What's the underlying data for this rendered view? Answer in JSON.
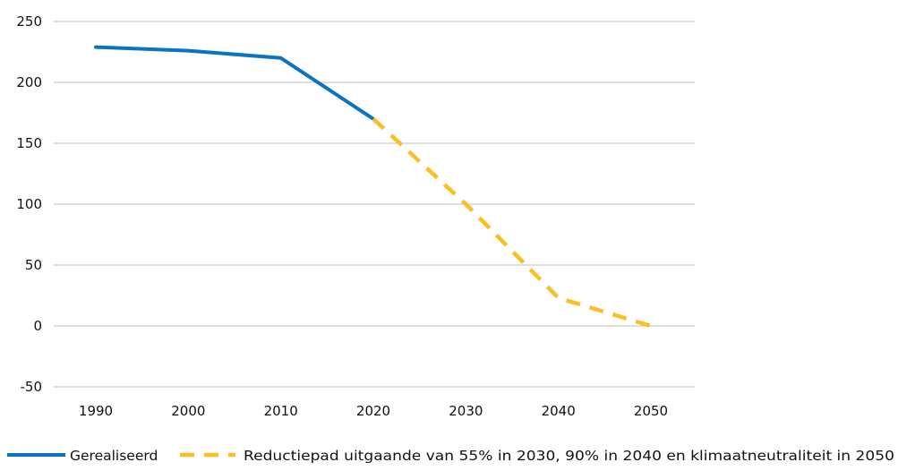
{
  "chart_data": {
    "type": "line",
    "title": "",
    "xlabel": "",
    "ylabel": "",
    "x_ticks": [
      "1990",
      "2000",
      "2010",
      "2020",
      "2030",
      "2040",
      "2050"
    ],
    "y_ticks": [
      "250",
      "200",
      "150",
      "100",
      "50",
      "0",
      "-50"
    ],
    "ylim": [
      -50,
      250
    ],
    "xlim": [
      1990,
      2050
    ],
    "grid": "horizontal",
    "legend_position": "bottom",
    "series": [
      {
        "name": "Gerealiseerd",
        "color": "#0a74c4",
        "style": "solid",
        "x": [
          1990,
          2000,
          2010,
          2020
        ],
        "y": [
          229,
          226,
          220,
          170
        ]
      },
      {
        "name": "Reductiepad uitgaande van 55% in 2030, 90% in 2040 en klimaatneutraliteit in 2050",
        "color": "#fbbf24",
        "style": "dashed",
        "x": [
          2020,
          2030,
          2040,
          2050
        ],
        "y": [
          170,
          100,
          23,
          0
        ]
      }
    ]
  }
}
